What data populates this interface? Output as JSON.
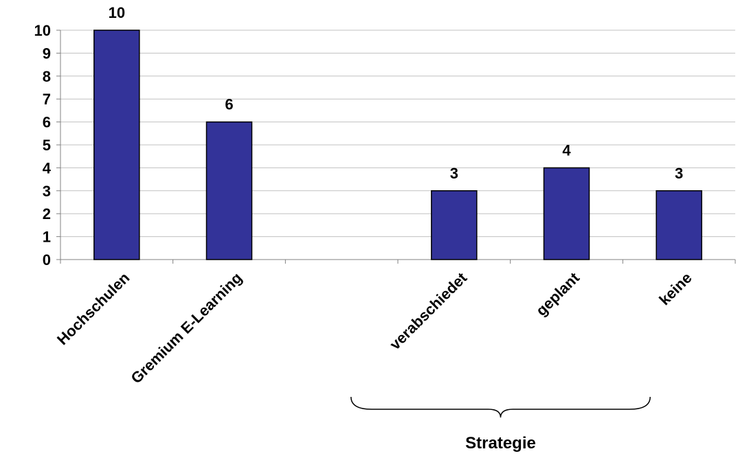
{
  "chart_data": {
    "type": "bar",
    "categories": [
      "Hochschulen",
      "Gremium E-Learning",
      "",
      "verabschiedet",
      "geplant",
      "keine"
    ],
    "values": [
      10,
      6,
      null,
      3,
      4,
      3
    ],
    "data_labels": [
      "10",
      "6",
      "",
      "3",
      "4",
      "3"
    ],
    "y_ticks": [
      "0",
      "1",
      "2",
      "3",
      "4",
      "5",
      "6",
      "7",
      "8",
      "9",
      "10"
    ],
    "ylim": [
      0,
      10
    ],
    "grid": true,
    "bar_color": "#333399",
    "group_annotation": {
      "label": "Strategie",
      "spans_categories": [
        "verabschiedet",
        "geplant",
        "keine"
      ]
    }
  }
}
